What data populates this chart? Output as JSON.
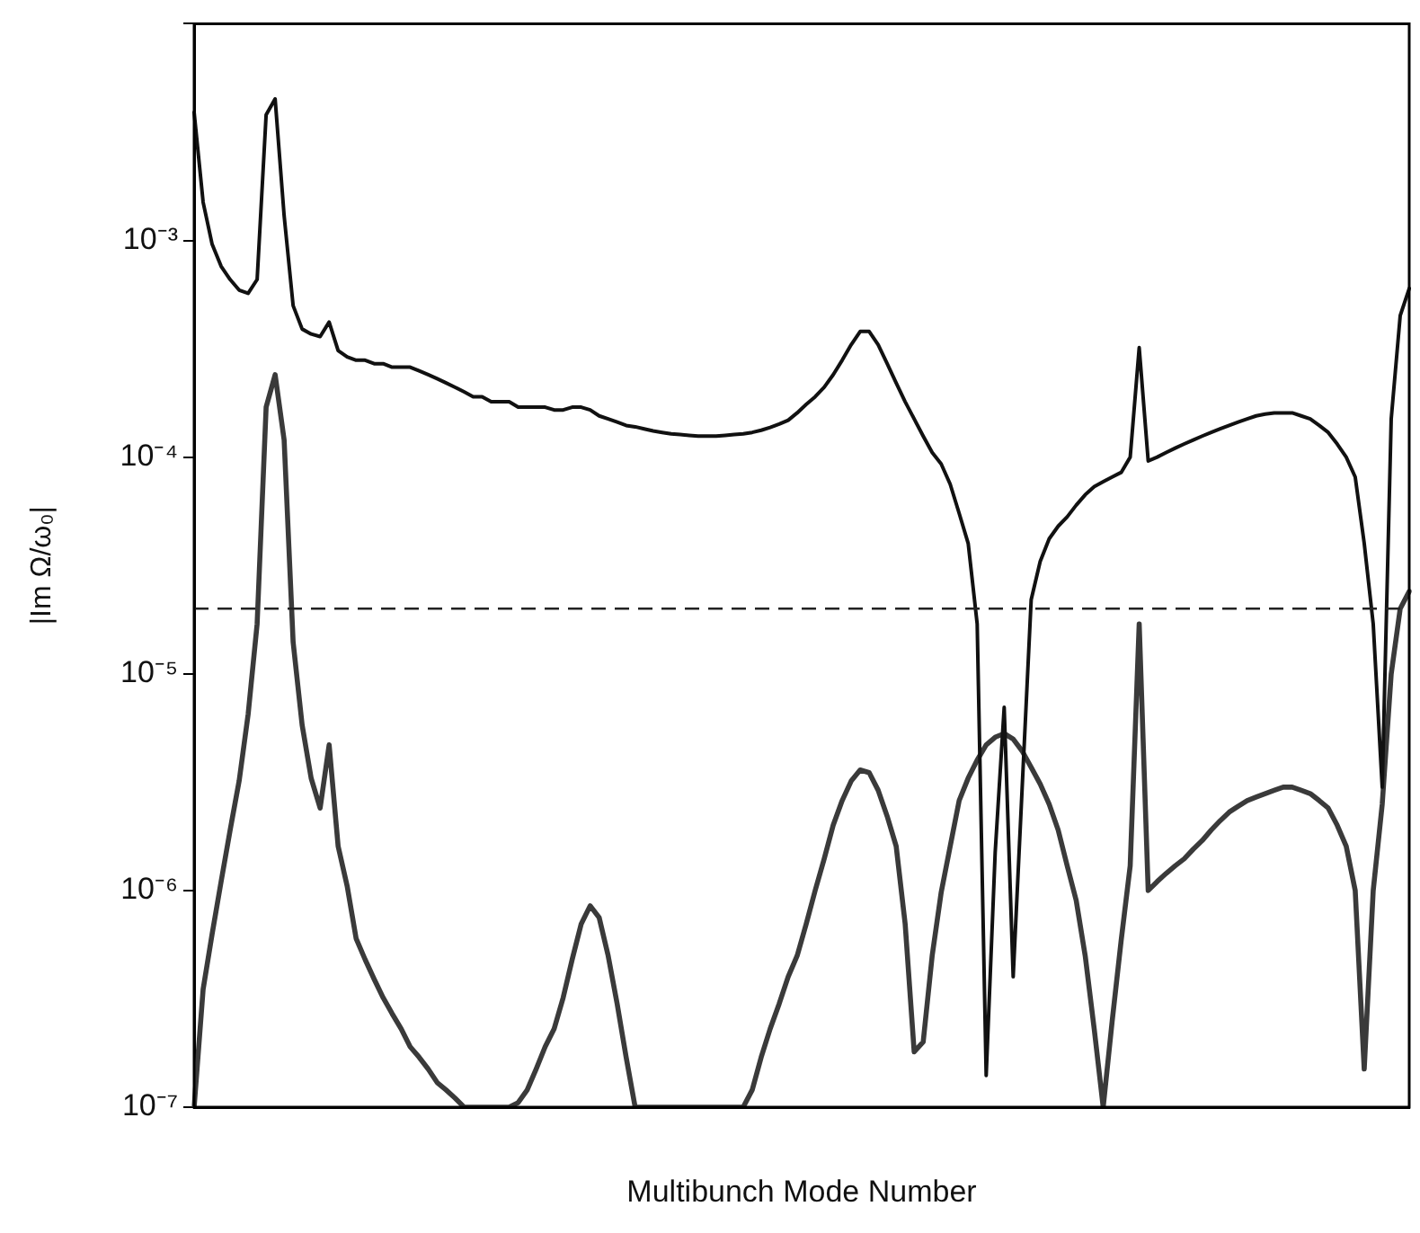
{
  "chart_data": {
    "type": "line",
    "xlabel": "Multibunch Mode Number",
    "ylabel": "|Im Ω/ω₀|",
    "log": "y",
    "marker": "none",
    "line_style": "solid",
    "legend": false,
    "categories": [
      null,
      null,
      null,
      null,
      null,
      null,
      null,
      null,
      null,
      null,
      null,
      null,
      null,
      null,
      null,
      null,
      null,
      null,
      null,
      null,
      null,
      null,
      null,
      null,
      null,
      null,
      null,
      null,
      null,
      null,
      null,
      null,
      null,
      null,
      null,
      null,
      null,
      null,
      null,
      null,
      null,
      null,
      null,
      null,
      null,
      null,
      null,
      null,
      null,
      null,
      null,
      null,
      null,
      null,
      null,
      null,
      null,
      null,
      null,
      null,
      null,
      null,
      null,
      null,
      null,
      null,
      null,
      null,
      null,
      null,
      null,
      null,
      null,
      null,
      null,
      null,
      null,
      null,
      null,
      null,
      null,
      null,
      null,
      null,
      null,
      null,
      null,
      null,
      null,
      null,
      null,
      null,
      null,
      null,
      null,
      null,
      null,
      null,
      null,
      null,
      null,
      null,
      null,
      null,
      null,
      null,
      null,
      null,
      null,
      null,
      null,
      null,
      null,
      null,
      null,
      null,
      null,
      null,
      null,
      null,
      null,
      null,
      null,
      null,
      null,
      null,
      null,
      null,
      null,
      null,
      null,
      null,
      null,
      null,
      null,
      null
    ],
    "ylim": [
      1e-07,
      0.01
    ],
    "yticks": [
      {
        "value": 1e-07,
        "label": "10⁻⁷"
      },
      {
        "value": 1e-06,
        "label": "10⁻⁶"
      },
      {
        "value": 1e-05,
        "label": "10⁻⁵"
      },
      {
        "value": 0.0001,
        "label": "10⁻⁴"
      },
      {
        "value": 0.001,
        "label": "10⁻³"
      },
      {
        "value": 0.01,
        "label": null
      }
    ],
    "ref_lines": [
      {
        "axis": "y",
        "value": 2e-05,
        "color": "#222222",
        "line_style": "dashed"
      }
    ],
    "series": [
      {
        "color": "#111111",
        "values": [
          0.0039,
          0.0015,
          0.00096,
          0.00076,
          0.00066,
          0.00059,
          0.00057,
          0.00066,
          0.0038,
          0.0045,
          0.0013,
          0.0005,
          0.00039,
          0.00037,
          0.00036,
          0.00042,
          0.00031,
          0.00029,
          0.00028,
          0.00028,
          0.00027,
          0.00027,
          0.00026,
          0.00026,
          0.00026,
          0.00025,
          0.00024,
          0.00023,
          0.00022,
          0.00021,
          0.0002,
          0.00019,
          0.00019,
          0.00018,
          0.00018,
          0.00018,
          0.00017,
          0.00017,
          0.00017,
          0.00017,
          0.000165,
          0.000165,
          0.00017,
          0.00017,
          0.000165,
          0.000155,
          0.00015,
          0.000145,
          0.00014,
          0.000138,
          0.000135,
          0.000132,
          0.00013,
          0.000128,
          0.000127,
          0.000126,
          0.000125,
          0.000125,
          0.000125,
          0.000126,
          0.000127,
          0.000128,
          0.00013,
          0.000133,
          0.000137,
          0.000142,
          0.000148,
          0.00016,
          0.000175,
          0.00019,
          0.00021,
          0.00024,
          0.00028,
          0.00033,
          0.00038,
          0.00038,
          0.00033,
          0.00027,
          0.00022,
          0.00018,
          0.00015,
          0.000125,
          0.000105,
          9.3e-05,
          7.5e-05,
          5.5e-05,
          4e-05,
          1.7e-05,
          1.4e-07,
          1.5e-06,
          7e-06,
          4e-07,
          3e-06,
          2.2e-05,
          3.3e-05,
          4.2e-05,
          4.8e-05,
          5.3e-05,
          6e-05,
          6.7e-05,
          7.3e-05,
          7.7e-05,
          8.1e-05,
          8.5e-05,
          0.0001,
          0.00032,
          9.6e-05,
          0.0001,
          0.000105,
          0.00011,
          0.000115,
          0.00012,
          0.000125,
          0.00013,
          0.000135,
          0.00014,
          0.000145,
          0.00015,
          0.000155,
          0.000158,
          0.00016,
          0.00016,
          0.00016,
          0.000155,
          0.00015,
          0.00014,
          0.00013,
          0.000115,
          0.0001,
          8.1e-05,
          4e-05,
          1.7e-05,
          3e-06,
          0.00015,
          0.00045,
          0.0006
        ]
      },
      {
        "color": "#3a3a3a",
        "values": [
          1e-07,
          3.5e-07,
          6.3e-07,
          1.1e-06,
          1.9e-06,
          3.2e-06,
          6.5e-06,
          1.7e-05,
          0.00017,
          0.00024,
          0.00012,
          1.4e-05,
          5.8e-06,
          3.3e-06,
          2.4e-06,
          4.7e-06,
          1.6e-06,
          1.05e-06,
          6e-07,
          4.8e-07,
          3.9e-07,
          3.2e-07,
          2.7e-07,
          2.3e-07,
          1.9e-07,
          1.7e-07,
          1.5e-07,
          1.3e-07,
          1.2e-07,
          1.1e-07,
          1e-07,
          1e-07,
          1e-07,
          1e-07,
          1e-07,
          1e-07,
          1.05e-07,
          1.2e-07,
          1.5e-07,
          1.9e-07,
          2.3e-07,
          3.2e-07,
          4.8e-07,
          7e-07,
          8.5e-07,
          7.5e-07,
          5e-07,
          3e-07,
          1.7e-07,
          1e-07,
          1e-07,
          1e-07,
          1e-07,
          1e-07,
          1e-07,
          1e-07,
          1e-07,
          1e-07,
          1e-07,
          1e-07,
          1e-07,
          1e-07,
          1.2e-07,
          1.7e-07,
          2.3e-07,
          3e-07,
          4e-07,
          5e-07,
          7e-07,
          1e-06,
          1.4e-06,
          2e-06,
          2.6e-06,
          3.2e-06,
          3.6e-06,
          3.5e-06,
          2.9e-06,
          2.2e-06,
          1.6e-06,
          7e-07,
          1.8e-07,
          2e-07,
          5e-07,
          9.8e-07,
          1.6e-06,
          2.6e-06,
          3.3e-06,
          4e-06,
          4.7e-06,
          5.1e-06,
          5.3e-06,
          5e-06,
          4.4e-06,
          3.7e-06,
          3.1e-06,
          2.5e-06,
          1.9e-06,
          1.3e-06,
          9e-07,
          5e-07,
          2.3e-07,
          1e-07,
          2.5e-07,
          5.9e-07,
          1.3e-06,
          1.7e-05,
          1e-06,
          1.1e-06,
          1.2e-06,
          1.3e-06,
          1.4e-06,
          1.55e-06,
          1.7e-06,
          1.9e-06,
          2.1e-06,
          2.3e-06,
          2.45e-06,
          2.6e-06,
          2.7e-06,
          2.8e-06,
          2.9e-06,
          3e-06,
          3e-06,
          2.9e-06,
          2.8e-06,
          2.6e-06,
          2.4e-06,
          2e-06,
          1.6e-06,
          1e-06,
          1.5e-07,
          1e-06,
          2.5e-06,
          1e-05,
          2e-05,
          2.4e-05
        ]
      }
    ]
  }
}
